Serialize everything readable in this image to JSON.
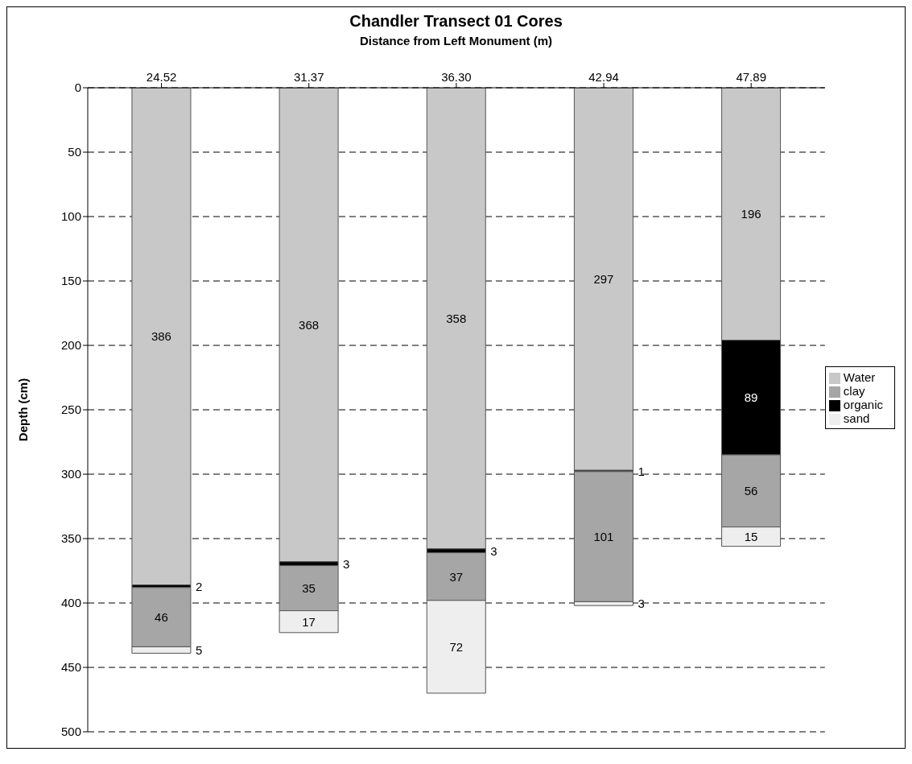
{
  "chart_data": {
    "type": "bar",
    "title": "Chandler Transect 01 Cores",
    "xlabel": "Distance from Left Monument (m)",
    "ylabel": "Depth (cm)",
    "categories": [
      "24.52",
      "31.37",
      "36.30",
      "42.94",
      "47.89"
    ],
    "stacked": true,
    "series": [
      {
        "name": "Water",
        "color": "#c8c8c8",
        "values": [
          386,
          368,
          358,
          297,
          196
        ]
      },
      {
        "name": "organic",
        "color": "#000000",
        "values": [
          2,
          3,
          3,
          1,
          89
        ]
      },
      {
        "name": "clay",
        "color": "#a6a6a6",
        "values": [
          46,
          35,
          37,
          101,
          56
        ]
      },
      {
        "name": "sand",
        "color": "#eeeeee",
        "values": [
          5,
          17,
          72,
          3,
          15
        ]
      }
    ],
    "ylim": [
      500,
      0
    ],
    "yticks": [
      0,
      50,
      100,
      150,
      200,
      250,
      300,
      350,
      400,
      450,
      500
    ],
    "grid": "y",
    "legend": "right",
    "data_labels": true
  }
}
